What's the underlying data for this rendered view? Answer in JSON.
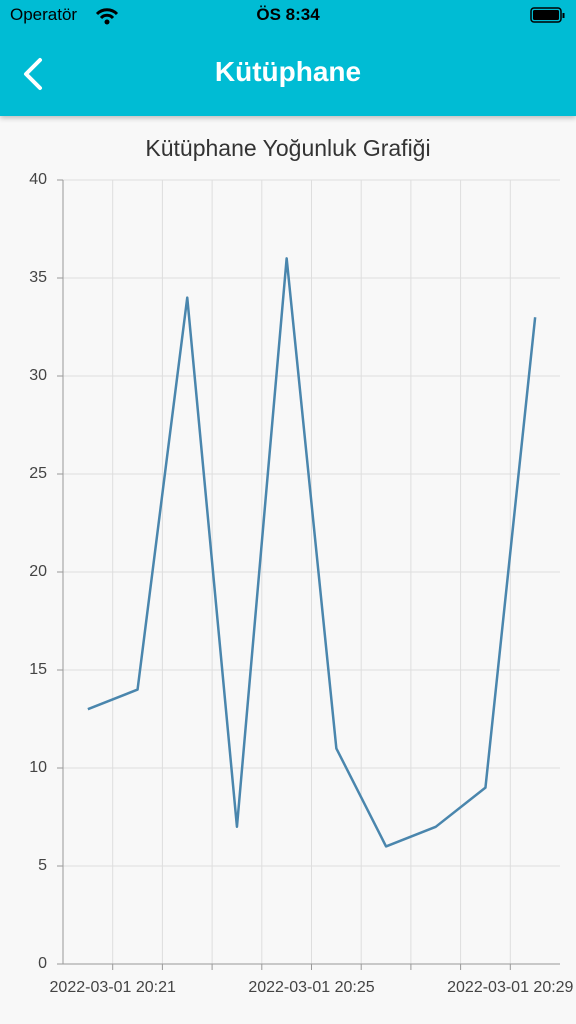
{
  "status_bar": {
    "carrier": "Operatör",
    "time": "ÖS 8:34"
  },
  "app_bar": {
    "title": "Kütüphane"
  },
  "chart_data": {
    "type": "line",
    "title": "Kütüphane  Yoğunluk Grafiği",
    "x": [
      "2022-03-01 20:20:30",
      "2022-03-01 20:21:30",
      "2022-03-01 20:22:30",
      "2022-03-01 20:23:30",
      "2022-03-01 20:24:30",
      "2022-03-01 20:25:30",
      "2022-03-01 20:26:30",
      "2022-03-01 20:27:30",
      "2022-03-01 20:28:30",
      "2022-03-01 20:29:30"
    ],
    "series": [
      {
        "color": "#4a86ad",
        "values": [
          13,
          14,
          34,
          7,
          36,
          11,
          6,
          7,
          9,
          33
        ]
      }
    ],
    "xlim": [
      "2022-03-01 20:20",
      "2022-03-01 20:30"
    ],
    "xticks": [
      "2022-03-01 20:21",
      "2022-03-01 20:25",
      "2022-03-01 20:29"
    ],
    "xminor": [
      "2022-03-01 20:22",
      "2022-03-01 20:23",
      "2022-03-01 20:24",
      "2022-03-01 20:26",
      "2022-03-01 20:27",
      "2022-03-01 20:28"
    ],
    "ylim": [
      0,
      40
    ],
    "yticks": [
      0,
      5,
      10,
      15,
      20,
      25,
      30,
      35,
      40
    ],
    "grid": true
  }
}
